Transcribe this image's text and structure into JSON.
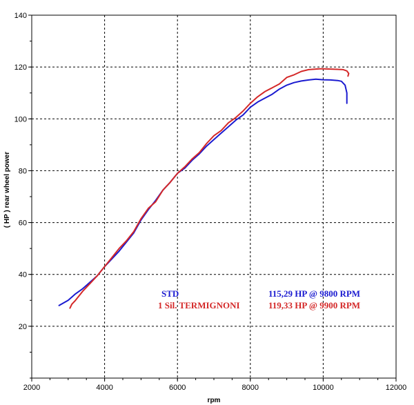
{
  "chart_data": {
    "type": "line",
    "title": "",
    "xlabel": "rpm",
    "ylabel": "( HP )   rear  wheel  power",
    "xlim": [
      2000,
      12000
    ],
    "ylim": [
      0,
      140
    ],
    "xticks": [
      2000,
      4000,
      6000,
      8000,
      10000,
      12000
    ],
    "yticks": [
      20,
      40,
      60,
      80,
      100,
      120,
      140
    ],
    "grid": true,
    "series": [
      {
        "name": "STD",
        "color": "#1a1ad0",
        "peak_label": "115,29 HP @ 9800 RPM",
        "x": [
          2750,
          3000,
          3200,
          3400,
          3600,
          3800,
          4000,
          4200,
          4400,
          4600,
          4800,
          5000,
          5200,
          5400,
          5600,
          5800,
          6000,
          6200,
          6400,
          6600,
          6800,
          7000,
          7200,
          7400,
          7600,
          7800,
          8000,
          8200,
          8400,
          8600,
          8800,
          9000,
          9200,
          9400,
          9600,
          9800,
          10000,
          10200,
          10400,
          10500,
          10600,
          10650,
          10650
        ],
        "y": [
          28,
          30,
          32.5,
          34.5,
          37,
          39.5,
          43,
          46,
          49,
          52.5,
          56,
          61,
          65,
          68.5,
          72.5,
          75.5,
          79,
          81,
          84,
          86.5,
          89.5,
          92,
          94.5,
          97,
          99.5,
          101.5,
          104.5,
          106.5,
          108,
          109.5,
          111.5,
          113,
          114,
          114.6,
          115,
          115.29,
          115.1,
          115,
          114.8,
          114.5,
          113,
          110,
          106
        ]
      },
      {
        "name": "1 Sil. TERMIGNONI",
        "color": "#d42828",
        "peak_label": "119,33 HP @ 9900 RPM",
        "x": [
          3050,
          3100,
          3200,
          3400,
          3600,
          3800,
          4000,
          4200,
          4400,
          4600,
          4800,
          5000,
          5200,
          5400,
          5600,
          5800,
          6000,
          6200,
          6400,
          6600,
          6800,
          7000,
          7200,
          7400,
          7600,
          7800,
          8000,
          8200,
          8400,
          8600,
          8800,
          9000,
          9200,
          9400,
          9600,
          9800,
          9900,
          10000,
          10200,
          10400,
          10550,
          10650,
          10700,
          10680
        ],
        "y": [
          27,
          28.5,
          30,
          33.5,
          36.5,
          39.5,
          43,
          46.5,
          50,
          53,
          56.5,
          61.5,
          65.5,
          68,
          72.5,
          75.5,
          79,
          81.5,
          84.5,
          87,
          90.5,
          93.5,
          95.5,
          98.5,
          100.5,
          103,
          106,
          108.5,
          110.5,
          112,
          113.5,
          116,
          117,
          118.3,
          119,
          119.2,
          119.33,
          119.3,
          119.2,
          119.1,
          119,
          118.5,
          117.5,
          116.5
        ]
      }
    ]
  }
}
